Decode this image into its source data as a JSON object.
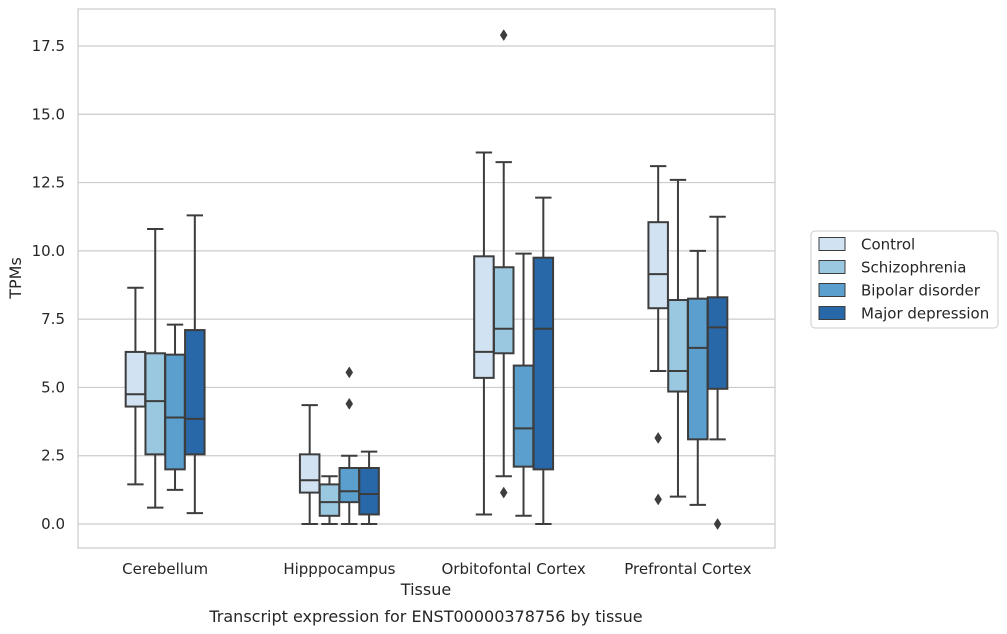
{
  "caption": "Transcript expression for ENST00000378756 by tissue",
  "chart_data": {
    "type": "boxplot",
    "xlabel": "Tissue",
    "ylabel": "TPMs",
    "ylim": [
      -0.85,
      18.8
    ],
    "yticks": [
      0.0,
      2.5,
      5.0,
      7.5,
      10.0,
      12.5,
      15.0,
      17.5
    ],
    "ytick_labels": [
      "0.0",
      "2.5",
      "5.0",
      "7.5",
      "10.0",
      "12.5",
      "15.0",
      "17.5"
    ],
    "grid": "horizontal",
    "legend_position": "right",
    "categories": [
      "Cerebellum",
      "Hipppocampus",
      "Orbitofontal Cortex",
      "Prefrontal Cortex"
    ],
    "series": [
      {
        "name": "Control",
        "color": "#d1e2f2",
        "boxes": [
          {
            "whislo": 1.45,
            "q1": 4.3,
            "med": 4.75,
            "q3": 6.3,
            "whishi": 8.65,
            "fliers": []
          },
          {
            "whislo": 0.0,
            "q1": 1.15,
            "med": 1.6,
            "q3": 2.55,
            "whishi": 4.35,
            "fliers": []
          },
          {
            "whislo": 0.35,
            "q1": 5.35,
            "med": 6.3,
            "q3": 9.8,
            "whishi": 13.6,
            "fliers": []
          },
          {
            "whislo": 5.6,
            "q1": 7.9,
            "med": 9.15,
            "q3": 11.05,
            "whishi": 13.1,
            "fliers": [
              3.15,
              0.9
            ]
          }
        ]
      },
      {
        "name": "Schizophrenia",
        "color": "#9ac8e0",
        "boxes": [
          {
            "whislo": 0.6,
            "q1": 2.55,
            "med": 4.5,
            "q3": 6.25,
            "whishi": 10.8,
            "fliers": []
          },
          {
            "whislo": 0.0,
            "q1": 0.3,
            "med": 0.8,
            "q3": 1.45,
            "whishi": 1.75,
            "fliers": []
          },
          {
            "whislo": 1.75,
            "q1": 6.25,
            "med": 7.15,
            "q3": 9.4,
            "whishi": 13.25,
            "fliers": [
              17.9,
              1.15
            ]
          },
          {
            "whislo": 1.0,
            "q1": 4.85,
            "med": 5.6,
            "q3": 8.2,
            "whishi": 12.6,
            "fliers": []
          }
        ]
      },
      {
        "name": "Bipolar disorder",
        "color": "#5a9fcd",
        "boxes": [
          {
            "whislo": 1.25,
            "q1": 2.0,
            "med": 3.9,
            "q3": 6.2,
            "whishi": 7.3,
            "fliers": []
          },
          {
            "whislo": 0.0,
            "q1": 0.8,
            "med": 1.2,
            "q3": 2.05,
            "whishi": 2.5,
            "fliers": [
              5.55,
              4.4
            ]
          },
          {
            "whislo": 0.3,
            "q1": 2.1,
            "med": 3.5,
            "q3": 5.8,
            "whishi": 9.9,
            "fliers": []
          },
          {
            "whislo": 0.7,
            "q1": 3.1,
            "med": 6.45,
            "q3": 8.25,
            "whishi": 10.0,
            "fliers": []
          }
        ]
      },
      {
        "name": "Major depression",
        "color": "#2868a8",
        "boxes": [
          {
            "whislo": 0.4,
            "q1": 2.55,
            "med": 3.85,
            "q3": 7.1,
            "whishi": 11.3,
            "fliers": []
          },
          {
            "whislo": 0.0,
            "q1": 0.35,
            "med": 1.1,
            "q3": 2.05,
            "whishi": 2.65,
            "fliers": []
          },
          {
            "whislo": 0.0,
            "q1": 2.0,
            "med": 7.15,
            "q3": 9.75,
            "whishi": 11.95,
            "fliers": []
          },
          {
            "whislo": 3.1,
            "q1": 4.95,
            "med": 7.2,
            "q3": 8.3,
            "whishi": 11.25,
            "fliers": [
              0.0
            ]
          }
        ]
      }
    ]
  }
}
